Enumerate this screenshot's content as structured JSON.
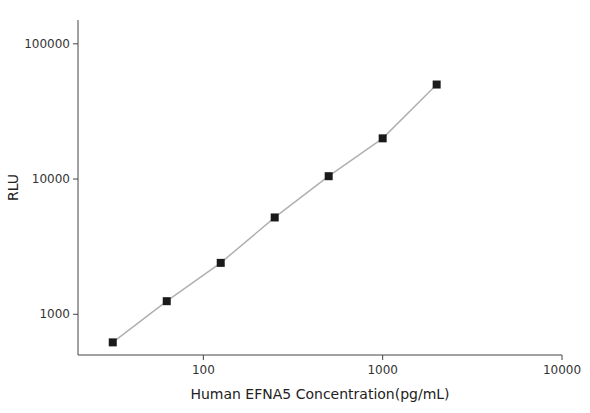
{
  "chart_data": {
    "type": "line",
    "x": [
      31.25,
      62.5,
      125,
      250,
      500,
      1000,
      2000
    ],
    "values": [
      620,
      1250,
      2400,
      5200,
      10500,
      20000,
      50000
    ],
    "xlim": [
      20,
      10000
    ],
    "ylim": [
      500,
      150000
    ],
    "xticks": [
      100,
      1000,
      10000
    ],
    "yticks": [
      1000,
      10000,
      100000
    ],
    "xlabel": "Human EFNA5 Concentration(pg/mL)",
    "ylabel": "RLU",
    "log": true,
    "grid": false,
    "color": "#b0b0b0",
    "marker": "square"
  }
}
